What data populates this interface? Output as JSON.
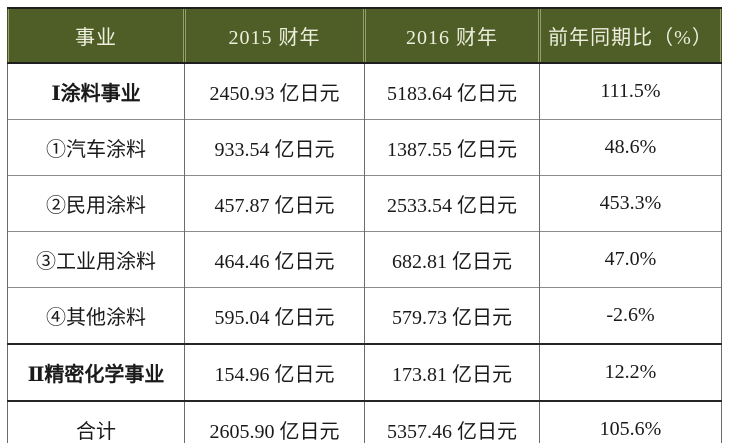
{
  "colors": {
    "header_background": "#4e5e26",
    "header_text": "#edeedd",
    "body_text": "#1a1a1a",
    "grid_line_light": "#8c8c8c",
    "grid_line_dark": "#1f1f1f"
  },
  "table": {
    "columns": [
      "事业",
      "2015 财年",
      "2016 财年",
      "前年同期比（%）"
    ],
    "rows": [
      [
        "Ⅰ涂料事业",
        "2450.93 亿日元",
        "5183.64 亿日元",
        "111.5%"
      ],
      [
        "①汽车涂料",
        "933.54 亿日元",
        "1387.55 亿日元",
        "48.6%"
      ],
      [
        "②民用涂料",
        "457.87 亿日元",
        "2533.54 亿日元",
        "453.3%"
      ],
      [
        "③工业用涂料",
        "464.46 亿日元",
        "682.81 亿日元",
        "47.0%"
      ],
      [
        "④其他涂料",
        "595.04 亿日元",
        "579.73 亿日元",
        "-2.6%"
      ],
      [
        "Ⅱ精密化学事业",
        "154.96 亿日元",
        "173.81 亿日元",
        "12.2%"
      ],
      [
        "合计",
        "2605.90 亿日元",
        "5357.46 亿日元",
        "105.6%"
      ]
    ]
  }
}
